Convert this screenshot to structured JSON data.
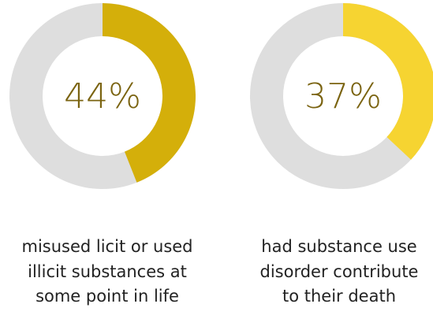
{
  "chart_data": [
    {
      "type": "pie",
      "value_percent": 44,
      "label": "44%",
      "caption": [
        "misused licit or used",
        "illicit substances at",
        "some point in life"
      ],
      "fill_color": "#D4AF0A",
      "track_color": "#DEDEDE",
      "text_color": "#7A6310"
    },
    {
      "type": "pie",
      "value_percent": 37,
      "label": "37%",
      "caption": [
        "had substance use",
        "disorder contribute",
        "to their death"
      ],
      "fill_color": "#F6D431",
      "track_color": "#DEDEDE",
      "text_color": "#7A6310"
    }
  ]
}
